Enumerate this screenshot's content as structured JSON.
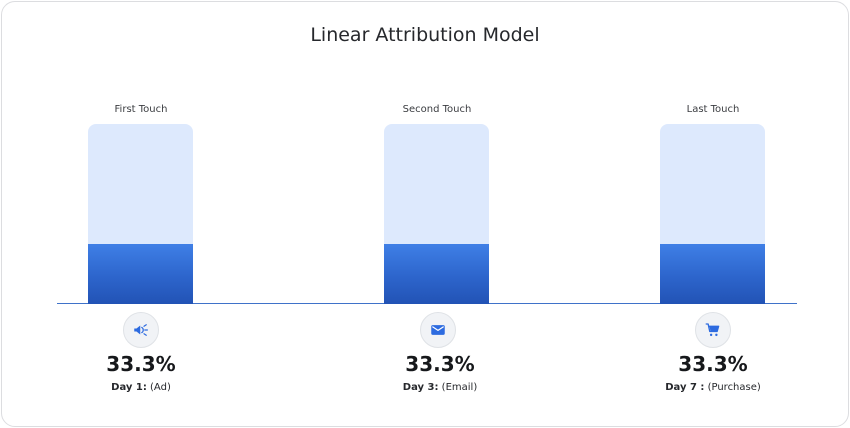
{
  "chart_data": {
    "type": "bar",
    "title": "Linear Attribution Model",
    "categories": [
      "First Touch",
      "Second Touch",
      "Last Touch"
    ],
    "values": [
      33.3,
      33.3,
      33.3
    ],
    "value_labels": [
      "33.3%",
      "33.3%",
      "33.3%"
    ],
    "ylim": [
      0,
      100
    ],
    "grid": false,
    "colors": {
      "fill": "#2d65cc",
      "track": "#dde9fd",
      "axis": "#3f72c9"
    },
    "touchpoints": [
      {
        "day_label": "Day 1:",
        "channel": "(Ad)",
        "icon": "megaphone-icon"
      },
      {
        "day_label": "Day 3:",
        "channel": "(Email)",
        "icon": "email-icon"
      },
      {
        "day_label": "Day 7 :",
        "channel": "(Purchase)",
        "icon": "cart-icon"
      }
    ]
  }
}
